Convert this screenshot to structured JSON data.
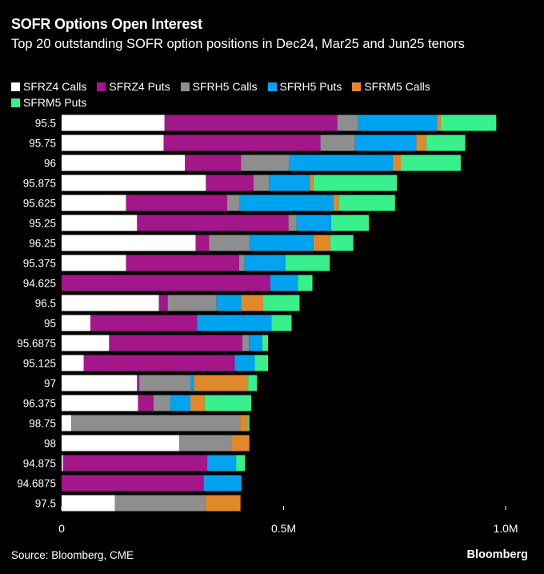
{
  "header": {
    "title": "SOFR Options Open Interest",
    "subtitle": "Top 20 outstanding SOFR option positions in Dec24, Mar25 and Jun25 tenors"
  },
  "footer": {
    "source": "Source: Bloomberg, CME",
    "brand": "Bloomberg"
  },
  "chart_data": {
    "type": "bar",
    "orientation": "horizontal",
    "stacked": true,
    "title": "SOFR Options Open Interest",
    "subtitle": "Top 20 outstanding SOFR option positions in Dec24, Mar25 and Jun25 tenors",
    "legend_position": "top",
    "grid": false,
    "xlim": [
      0,
      1000000
    ],
    "x_ticks": [
      0,
      500000,
      1000000
    ],
    "x_tick_labels": [
      "0",
      "0.5M",
      "1.0M"
    ],
    "categories": [
      "95.5",
      "95.75",
      "96",
      "95.875",
      "95.625",
      "95.25",
      "96.25",
      "95.375",
      "94.625",
      "96.5",
      "95",
      "95.6875",
      "95.125",
      "97",
      "96.375",
      "98.75",
      "98",
      "94.875",
      "94.6875",
      "97.5"
    ],
    "series": [
      {
        "name": "SFRZ4 Calls",
        "color": "#ffffff",
        "values": [
          232000,
          230000,
          278000,
          325000,
          145000,
          170000,
          302000,
          145000,
          0,
          219000,
          65000,
          107000,
          50000,
          170000,
          172000,
          22000,
          265000,
          3000,
          0,
          120000
        ]
      },
      {
        "name": "SFRZ4 Puts",
        "color": "#a3178b",
        "values": [
          389000,
          353000,
          126000,
          107000,
          228000,
          341000,
          30000,
          255000,
          470000,
          20000,
          240000,
          300000,
          340000,
          5000,
          35000,
          0,
          0,
          325000,
          320000,
          0
        ]
      },
      {
        "name": "SFRH5 Calls",
        "color": "#8e8e8e",
        "values": [
          47000,
          78000,
          109000,
          35000,
          27000,
          18000,
          92000,
          12000,
          0,
          110000,
          0,
          15000,
          0,
          115000,
          38000,
          380000,
          118000,
          0,
          0,
          203000
        ]
      },
      {
        "name": "SFRH5 Puts",
        "color": "#00a3f0",
        "values": [
          178000,
          138000,
          233000,
          92000,
          212000,
          78000,
          143000,
          92000,
          62000,
          55000,
          168000,
          30000,
          45000,
          8000,
          45000,
          0,
          0,
          65000,
          85000,
          0
        ]
      },
      {
        "name": "SFRM5 Calls",
        "color": "#e0892a",
        "values": [
          8000,
          22000,
          18000,
          8000,
          12000,
          0,
          38000,
          0,
          0,
          50000,
          0,
          0,
          0,
          122000,
          32000,
          18000,
          40000,
          0,
          0,
          80000
        ]
      },
      {
        "name": "SFRM5 Puts",
        "color": "#38f08c",
        "values": [
          125000,
          88000,
          135000,
          188000,
          127000,
          85000,
          52000,
          100000,
          33000,
          82000,
          45000,
          13000,
          30000,
          20000,
          105000,
          3000,
          0,
          20000,
          0,
          0
        ]
      }
    ]
  }
}
